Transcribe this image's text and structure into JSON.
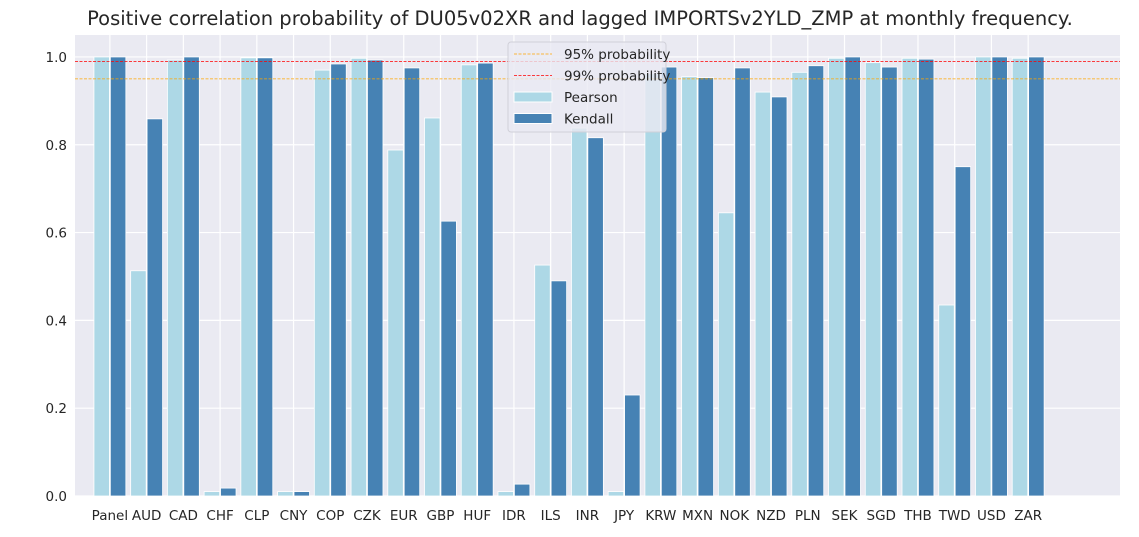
{
  "chart_data": {
    "type": "bar",
    "title": "Positive correlation probability of DU05v02XR and lagged IMPORTSv2YLD_ZMP at monthly frequency.",
    "xlabel": "",
    "ylabel": "",
    "ylim": [
      0,
      1.05
    ],
    "yticks": [
      "0.0",
      "0.2",
      "0.4",
      "0.6",
      "0.8",
      "1.0"
    ],
    "grid": true,
    "legend_position": "top-center",
    "categories": [
      "Panel",
      "AUD",
      "CAD",
      "CHF",
      "CLP",
      "CNY",
      "COP",
      "CZK",
      "EUR",
      "GBP",
      "HUF",
      "IDR",
      "ILS",
      "INR",
      "JPY",
      "KRW",
      "MXN",
      "NOK",
      "NZD",
      "PLN",
      "SEK",
      "SGD",
      "THB",
      "TWD",
      "USD",
      "ZAR"
    ],
    "series": [
      {
        "name": "Pearson",
        "color": "#add8e6",
        "values": [
          1.0,
          0.513,
          0.993,
          0.01,
          0.998,
          0.01,
          0.97,
          0.997,
          0.788,
          0.861,
          0.982,
          0.01,
          0.526,
          0.838,
          0.01,
          0.962,
          0.955,
          0.645,
          0.92,
          0.965,
          0.997,
          0.987,
          0.997,
          0.435,
          1.0,
          0.997
        ]
      },
      {
        "name": "Kendall",
        "color": "#4682b4",
        "values": [
          1.0,
          0.859,
          1.0,
          0.018,
          0.998,
          0.01,
          0.984,
          0.993,
          0.975,
          0.626,
          0.986,
          0.027,
          0.49,
          0.816,
          0.23,
          0.977,
          0.953,
          0.975,
          0.909,
          0.98,
          1.0,
          0.977,
          0.995,
          0.75,
          1.0,
          1.0
        ]
      }
    ],
    "reference_lines": [
      {
        "name": "95% probability",
        "value": 0.95,
        "color": "#ffa500",
        "style": "dashed"
      },
      {
        "name": "99% probability",
        "value": 0.99,
        "color": "#ff0000",
        "style": "dashed"
      }
    ]
  }
}
